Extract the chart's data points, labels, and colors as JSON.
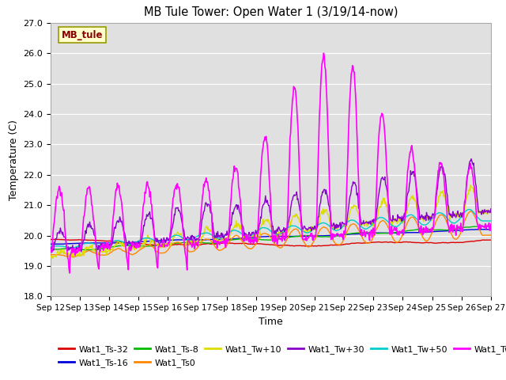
{
  "title": "MB Tule Tower: Open Water 1 (3/19/14-now)",
  "xlabel": "Time",
  "ylabel": "Temperature (C)",
  "ylim": [
    18.0,
    27.0
  ],
  "yticks": [
    18.0,
    19.0,
    20.0,
    21.0,
    22.0,
    23.0,
    24.0,
    25.0,
    26.0,
    27.0
  ],
  "xtick_labels": [
    "Sep 12",
    "Sep 13",
    "Sep 14",
    "Sep 15",
    "Sep 16",
    "Sep 17",
    "Sep 18",
    "Sep 19",
    "Sep 20",
    "Sep 21",
    "Sep 22",
    "Sep 23",
    "Sep 24",
    "Sep 25",
    "Sep 26",
    "Sep 27"
  ],
  "legend_label": "MB_tule",
  "bg_color": "#e0e0e0",
  "series": {
    "Wat1_Ts-32": {
      "color": "#dd0000",
      "lw": 1.0
    },
    "Wat1_Ts-16": {
      "color": "#0000dd",
      "lw": 1.0
    },
    "Wat1_Ts-8": {
      "color": "#00bb00",
      "lw": 1.0
    },
    "Wat1_Ts0": {
      "color": "#ff8800",
      "lw": 1.0
    },
    "Wat1_Tw+10": {
      "color": "#dddd00",
      "lw": 1.0
    },
    "Wat1_Tw+30": {
      "color": "#8800cc",
      "lw": 1.0
    },
    "Wat1_Tw+50": {
      "color": "#00cccc",
      "lw": 1.0
    },
    "Wat1_Tw100": {
      "color": "#ff00ff",
      "lw": 1.2
    }
  }
}
